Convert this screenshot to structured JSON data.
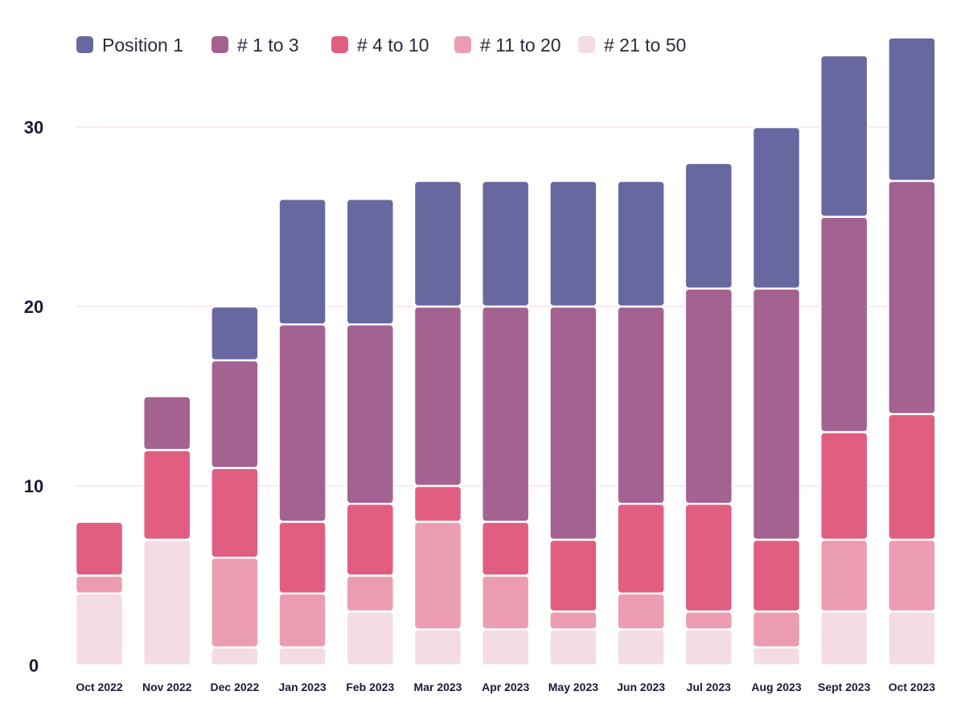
{
  "chart_data": {
    "type": "bar",
    "stacked": true,
    "title": "",
    "xlabel": "",
    "ylabel": "",
    "ylim": [
      0,
      35
    ],
    "yticks": [
      0,
      10,
      20,
      30
    ],
    "grid": true,
    "legend_position": "top-left",
    "categories": [
      "Oct 2022",
      "Nov 2022",
      "Dec 2022",
      "Jan 2023",
      "Feb 2023",
      "Mar 2023",
      "Apr 2023",
      "May 2023",
      "Jun 2023",
      "Jul 2023",
      "Aug 2023",
      "Sept 2023",
      "Oct 2023"
    ],
    "series": [
      {
        "name": "# 21 to 50",
        "color": "#f4dce3",
        "values": [
          4,
          7,
          1,
          1,
          3,
          2,
          2,
          2,
          2,
          2,
          1,
          3,
          3
        ]
      },
      {
        "name": "# 11 to 20",
        "color": "#ec9db2",
        "values": [
          1,
          0,
          5,
          3,
          2,
          6,
          3,
          1,
          2,
          1,
          2,
          4,
          4
        ]
      },
      {
        "name": "# 4 to 10",
        "color": "#e15e80",
        "values": [
          3,
          5,
          5,
          4,
          4,
          2,
          3,
          4,
          5,
          6,
          4,
          6,
          7
        ]
      },
      {
        "name": "# 1 to 3",
        "color": "#a46291",
        "values": [
          0,
          3,
          6,
          11,
          10,
          10,
          12,
          13,
          11,
          12,
          14,
          12,
          13
        ]
      },
      {
        "name": "Position 1",
        "color": "#6868a1",
        "values": [
          0,
          0,
          3,
          7,
          7,
          7,
          7,
          7,
          7,
          7,
          9,
          9,
          8
        ]
      }
    ],
    "legend": [
      "Position 1",
      "# 1 to 3",
      "# 4 to 10",
      "# 11 to 20",
      "# 21 to 50"
    ]
  }
}
